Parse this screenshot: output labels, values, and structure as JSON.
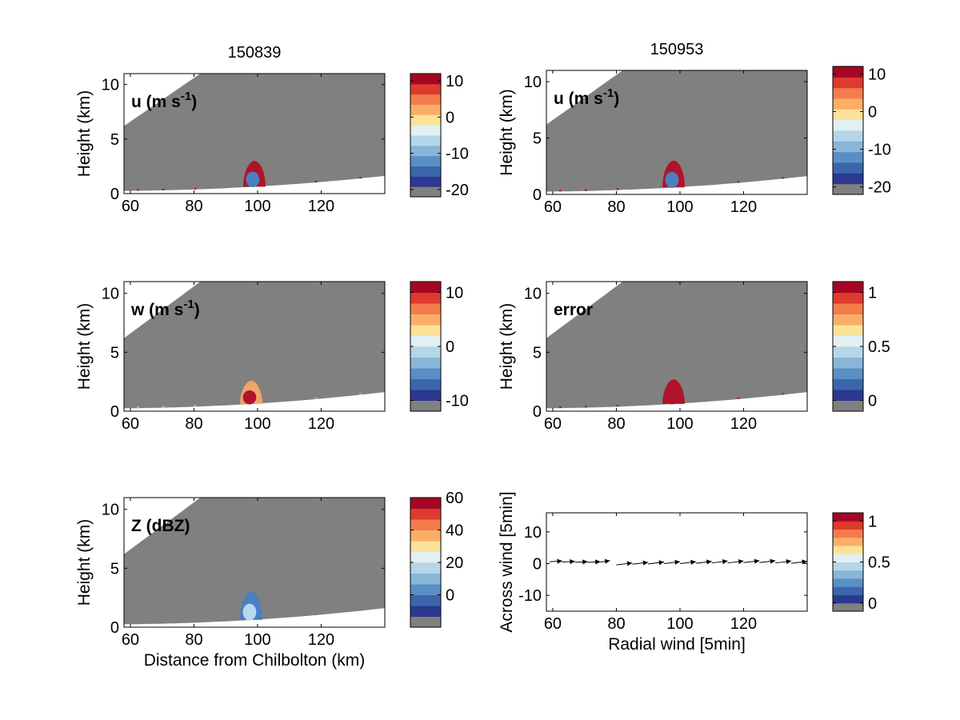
{
  "palette": {
    "gray": "#808080",
    "levels": [
      "#2b3990",
      "#3b66ac",
      "#5a8fc4",
      "#89b6d8",
      "#b5d6e8",
      "#e3f0f3",
      "#fde29a",
      "#fcae68",
      "#f47c4c",
      "#dd3b2d",
      "#a50626"
    ],
    "cell_red": "#b0142a",
    "cell_blue": "#4a7fc0",
    "cell_orange": "#f2a366",
    "cell_lightblue": "#b8d8ee"
  },
  "chart_data": [
    {
      "type": "heatmap",
      "id": "u_150839",
      "title": "150839",
      "panel_label": "u (m s",
      "panel_label_sup": "-1",
      "panel_label_end": ")",
      "xlabel": "",
      "ylabel": "Height (km)",
      "xlim": [
        58,
        140
      ],
      "ylim": [
        0,
        11
      ],
      "xticks": [
        60,
        80,
        100,
        120
      ],
      "yticks": [
        0,
        5,
        10
      ],
      "colorbar": {
        "ticks": [
          10,
          0,
          -10,
          -20
        ],
        "lim": [
          -22,
          12
        ]
      },
      "cell": {
        "x_center": 99,
        "top_km": 3.0,
        "colors": [
          "cell_red",
          "cell_blue"
        ]
      }
    },
    {
      "type": "heatmap",
      "id": "u_150953",
      "title": "150953",
      "panel_label": "u (m s",
      "panel_label_sup": "-1",
      "panel_label_end": ")",
      "xlabel": "",
      "ylabel": "Height (km)",
      "xlim": [
        58,
        140
      ],
      "ylim": [
        0,
        11
      ],
      "xticks": [
        60,
        80,
        100,
        120
      ],
      "yticks": [
        0,
        5,
        10
      ],
      "colorbar": {
        "ticks": [
          10,
          0,
          -10,
          -20
        ],
        "lim": [
          -22,
          12
        ]
      },
      "cell": {
        "x_center": 98,
        "top_km": 3.0,
        "colors": [
          "cell_red",
          "cell_blue"
        ]
      }
    },
    {
      "type": "heatmap",
      "id": "w_150839",
      "title": "",
      "panel_label": "w (m s",
      "panel_label_sup": "-1",
      "panel_label_end": ")",
      "xlabel": "",
      "ylabel": "Height (km)",
      "xlim": [
        58,
        140
      ],
      "ylim": [
        0,
        11
      ],
      "xticks": [
        60,
        80,
        100,
        120
      ],
      "yticks": [
        0,
        5,
        10
      ],
      "colorbar": {
        "ticks": [
          10,
          0,
          -10
        ],
        "lim": [
          -12,
          12
        ]
      },
      "cell": {
        "x_center": 98,
        "top_km": 2.6,
        "colors": [
          "cell_orange",
          "cell_red"
        ]
      }
    },
    {
      "type": "heatmap",
      "id": "error_150953",
      "title": "",
      "panel_label": "error",
      "panel_label_sup": "",
      "panel_label_end": "",
      "xlabel": "",
      "ylabel": "Height (km)",
      "xlim": [
        58,
        140
      ],
      "ylim": [
        0,
        11
      ],
      "xticks": [
        60,
        80,
        100,
        120
      ],
      "yticks": [
        0,
        5,
        10
      ],
      "colorbar": {
        "ticks": [
          1,
          0.5,
          0
        ],
        "lim": [
          -0.1,
          1.1
        ]
      },
      "cell": {
        "x_center": 98,
        "top_km": 2.7,
        "colors": [
          "cell_red"
        ]
      }
    },
    {
      "type": "heatmap",
      "id": "z_150839",
      "title": "",
      "panel_label": "Z (dBZ)",
      "panel_label_sup": "",
      "panel_label_end": "",
      "xlabel": "Distance from Chilbolton (km)",
      "ylabel": "Height (km)",
      "xlim": [
        58,
        140
      ],
      "ylim": [
        0,
        11
      ],
      "xticks": [
        60,
        80,
        100,
        120
      ],
      "yticks": [
        0,
        5,
        10
      ],
      "colorbar": {
        "ticks": [
          60,
          40,
          20,
          0
        ],
        "lim": [
          -20,
          60
        ]
      },
      "cell": {
        "x_center": 98,
        "top_km": 3.0,
        "colors": [
          "cell_blue",
          "cell_lightblue"
        ]
      }
    },
    {
      "type": "quiver",
      "id": "wind_vectors",
      "title": "",
      "xlabel": "Radial wind [5min]",
      "ylabel": "Across wind [5min]",
      "xlim": [
        58,
        140
      ],
      "ylim": [
        -15,
        16
      ],
      "xticks": [
        60,
        80,
        100,
        120
      ],
      "yticks": [
        10,
        0,
        -10
      ],
      "colorbar": {
        "ticks": [
          1,
          0.5,
          0
        ],
        "lim": [
          -0.1,
          1.1
        ]
      },
      "arrows": [
        {
          "x": 59,
          "y": 0.6,
          "u": 4,
          "v": 0.1
        },
        {
          "x": 63,
          "y": 0.5,
          "u": 4,
          "v": 0.1
        },
        {
          "x": 67,
          "y": 0.4,
          "u": 4,
          "v": 0.1
        },
        {
          "x": 71,
          "y": 0.4,
          "u": 4,
          "v": 0.1
        },
        {
          "x": 75,
          "y": 0.5,
          "u": 3,
          "v": 0.2
        },
        {
          "x": 80,
          "y": -0.4,
          "u": 5,
          "v": 0.3
        },
        {
          "x": 85,
          "y": -0.2,
          "u": 5,
          "v": 0.3
        },
        {
          "x": 90,
          "y": -0.1,
          "u": 5,
          "v": 0.3
        },
        {
          "x": 95,
          "y": 0.0,
          "u": 5,
          "v": 0.3
        },
        {
          "x": 100,
          "y": 0.0,
          "u": 5,
          "v": 0.3
        },
        {
          "x": 105,
          "y": 0.1,
          "u": 5,
          "v": 0.3
        },
        {
          "x": 110,
          "y": 0.2,
          "u": 5,
          "v": 0.3
        },
        {
          "x": 115,
          "y": 0.2,
          "u": 5,
          "v": 0.3
        },
        {
          "x": 120,
          "y": 0.3,
          "u": 5,
          "v": 0.3
        },
        {
          "x": 125,
          "y": 0.3,
          "u": 5,
          "v": 0.3
        },
        {
          "x": 130,
          "y": 0.2,
          "u": 5,
          "v": 0.3
        },
        {
          "x": 135,
          "y": 0.1,
          "u": 5,
          "v": 0.3
        }
      ]
    }
  ]
}
